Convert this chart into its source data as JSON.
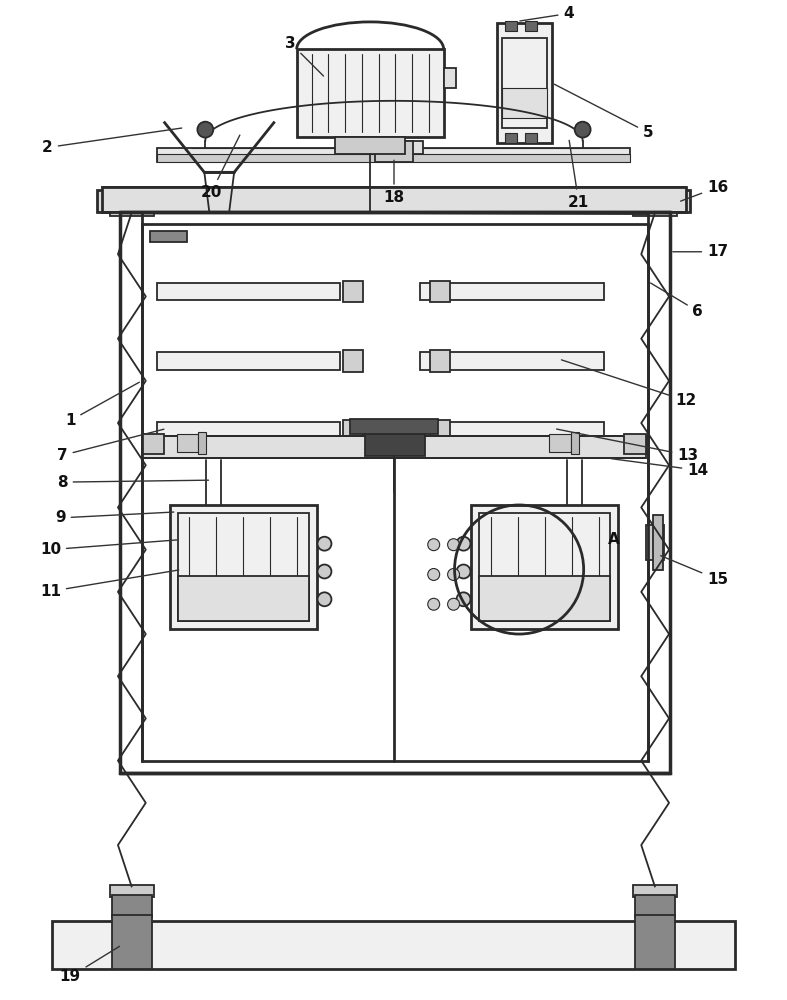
{
  "line_color": "#2a2a2a",
  "lw_thin": 0.8,
  "lw_med": 1.3,
  "lw_thick": 2.0,
  "lw_xthick": 2.5,
  "fig_w": 7.87,
  "fig_h": 10.0,
  "dpi": 100,
  "label_fs": 11
}
